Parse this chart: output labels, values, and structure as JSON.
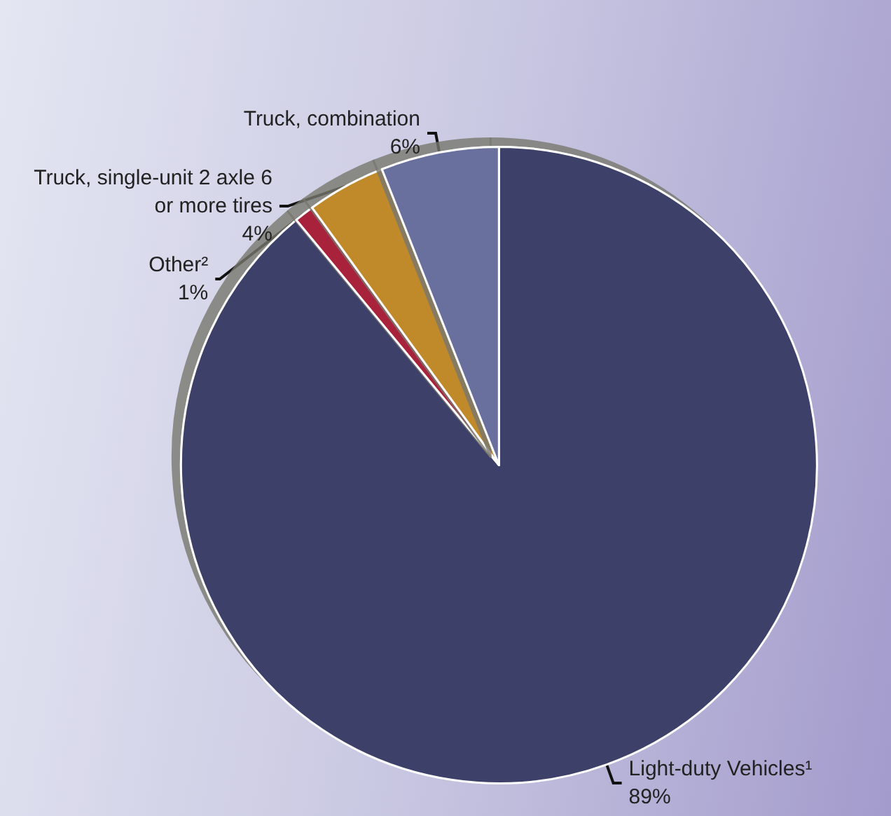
{
  "chart_data": {
    "type": "pie",
    "categories": [
      "Light-duty Vehicles¹",
      "Other²",
      "Truck, single-unit 2 axle 6 or more tires",
      "Truck, combination"
    ],
    "values": [
      89,
      1,
      4,
      6
    ],
    "value_labels": [
      "89%",
      "1%",
      "4%",
      "6%"
    ],
    "colors": [
      "#3d3f68",
      "#a8213a",
      "#c08a2a",
      "#6a6f9e"
    ]
  }
}
